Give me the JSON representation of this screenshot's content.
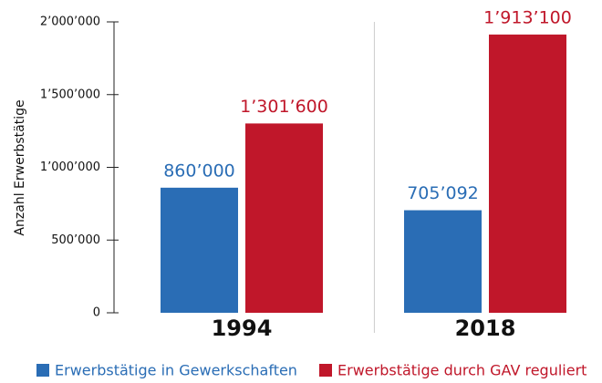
{
  "chart_data": {
    "type": "bar",
    "y_label": "Anzahl Erwerbstätige",
    "categories": [
      "1994",
      "2018"
    ],
    "series": [
      {
        "name": "Erwerbstätige in Gewerkschaften",
        "color": "#2a6db5",
        "values": [
          860000,
          705092
        ],
        "value_labels": [
          "860’000",
          "705’092"
        ]
      },
      {
        "name": "Erwerbstätige durch GAV reguliert",
        "color": "#c0172a",
        "values": [
          1301600,
          1913100
        ],
        "value_labels": [
          "1’301’600",
          "1’913’100"
        ]
      }
    ],
    "ylim": [
      0,
      2000000
    ],
    "yticks": [
      0,
      {
        "value": 500000,
        "label": "500’000"
      },
      {
        "value": 1000000,
        "label": "1’000’000"
      },
      {
        "value": 1500000,
        "label": "1’500’000"
      },
      {
        "value": 2000000,
        "label": "2’000’000"
      }
    ]
  }
}
